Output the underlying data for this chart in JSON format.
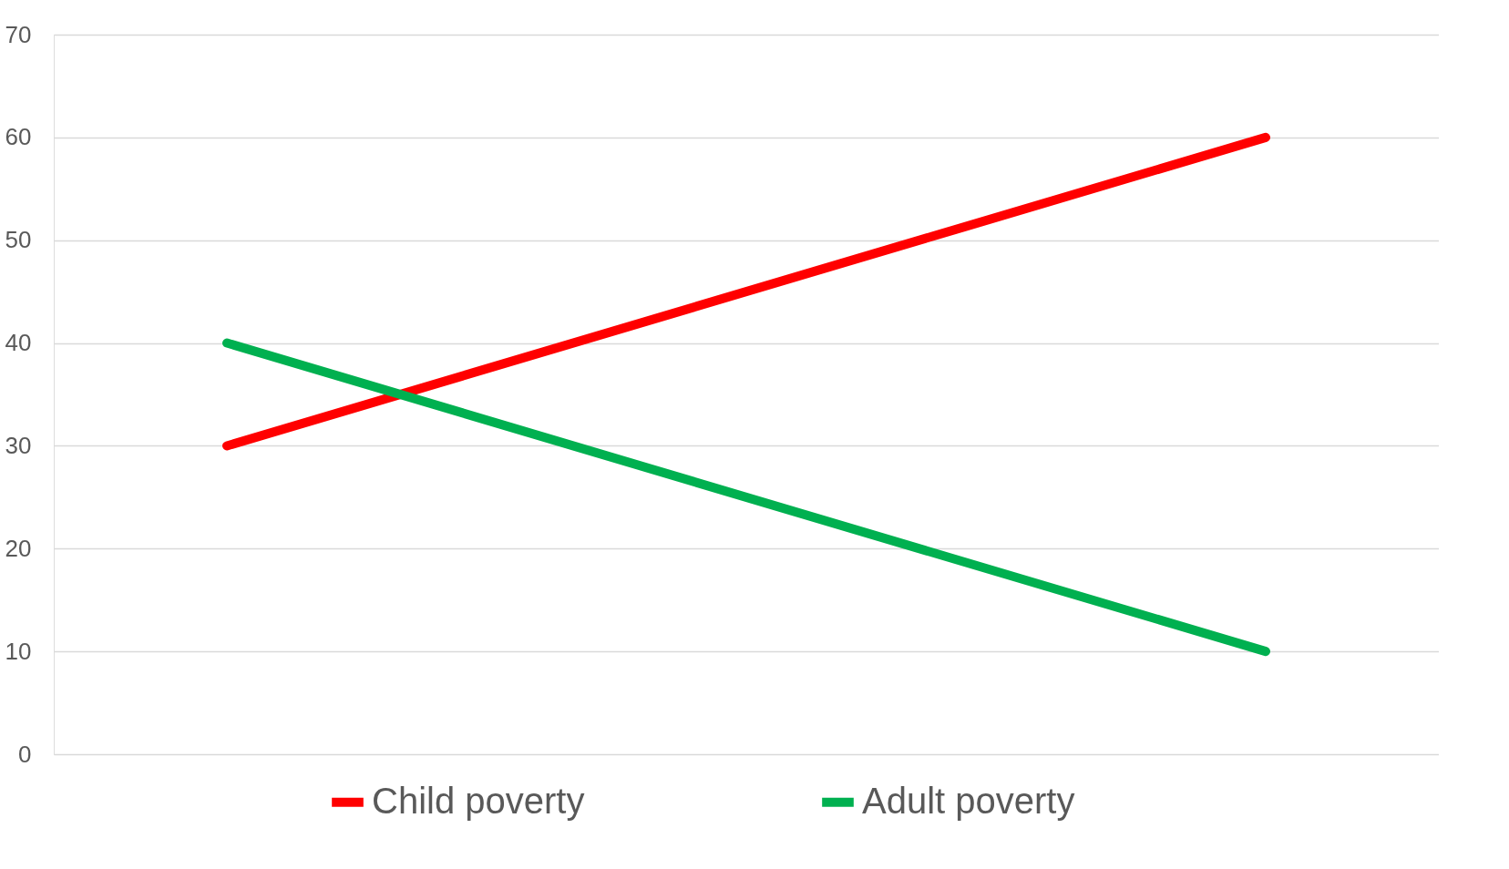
{
  "chart_data": {
    "type": "line",
    "categories": [
      null,
      null,
      null,
      null
    ],
    "series": [
      {
        "name": "Child poverty",
        "color": "#ff0000",
        "values": [
          30,
          null,
          null,
          60
        ]
      },
      {
        "name": "Adult poverty",
        "color": "#00b050",
        "values": [
          40,
          null,
          null,
          10
        ]
      }
    ],
    "ylim": [
      0,
      70
    ],
    "yticks": [
      0,
      10,
      20,
      30,
      40,
      50,
      60,
      70
    ],
    "grid": "y",
    "legend": "bottom",
    "tick_labels": "y",
    "marker": "none",
    "line_style": "solid"
  }
}
